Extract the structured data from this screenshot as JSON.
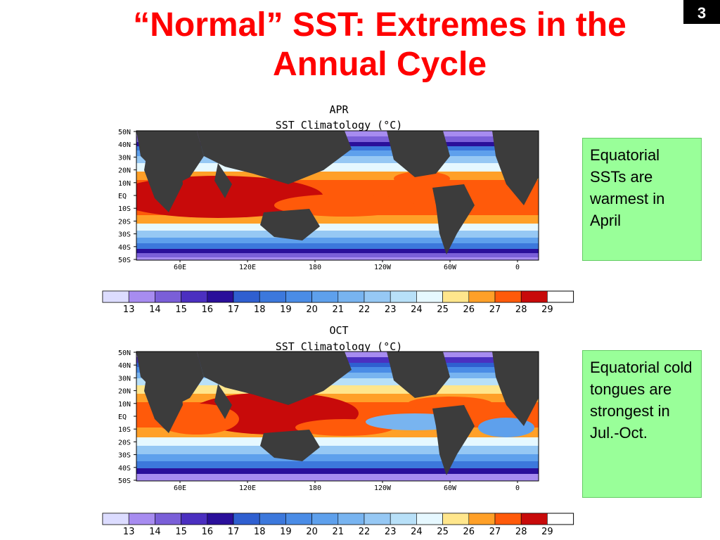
{
  "slide": {
    "title_line1": "“Normal” SST: Extremes in the",
    "title_line2": "Annual Cycle",
    "page_number": "3"
  },
  "maps": [
    {
      "id": "apr",
      "month": "APR",
      "subtitle": "SST Climatology (°C)",
      "note": "Equatorial SSTs are warmest in April"
    },
    {
      "id": "oct",
      "month": "OCT",
      "subtitle": "SST Climatology (°C)",
      "note": "Equatorial cold tongues are strongest in Jul.-Oct."
    }
  ],
  "axes": {
    "lat_labels": [
      "50N",
      "40N",
      "30N",
      "20N",
      "10N",
      "EQ",
      "10S",
      "20S",
      "30S",
      "40S",
      "50S"
    ],
    "lon_labels": [
      "60E",
      "120E",
      "180",
      "120W",
      "60W",
      "0"
    ]
  },
  "colorbar": {
    "values": [
      "13",
      "14",
      "15",
      "16",
      "17",
      "18",
      "19",
      "20",
      "21",
      "22",
      "23",
      "24",
      "25",
      "26",
      "27",
      "28",
      "29"
    ],
    "colors": [
      "#dcdcff",
      "#a78cf0",
      "#7a5fd8",
      "#4b2fc0",
      "#2a0f9a",
      "#2f5fd0",
      "#3c78dc",
      "#4a8ce6",
      "#5ea0ec",
      "#78b4f0",
      "#96c8f4",
      "#b8e0f8",
      "#e6f8ff",
      "#ffe68c",
      "#ffa028",
      "#ff5a0a",
      "#c80a0a"
    ]
  },
  "colors": {
    "title": "#ff0000",
    "land": "#3c3c3c",
    "note_bg": "#99ff99"
  }
}
